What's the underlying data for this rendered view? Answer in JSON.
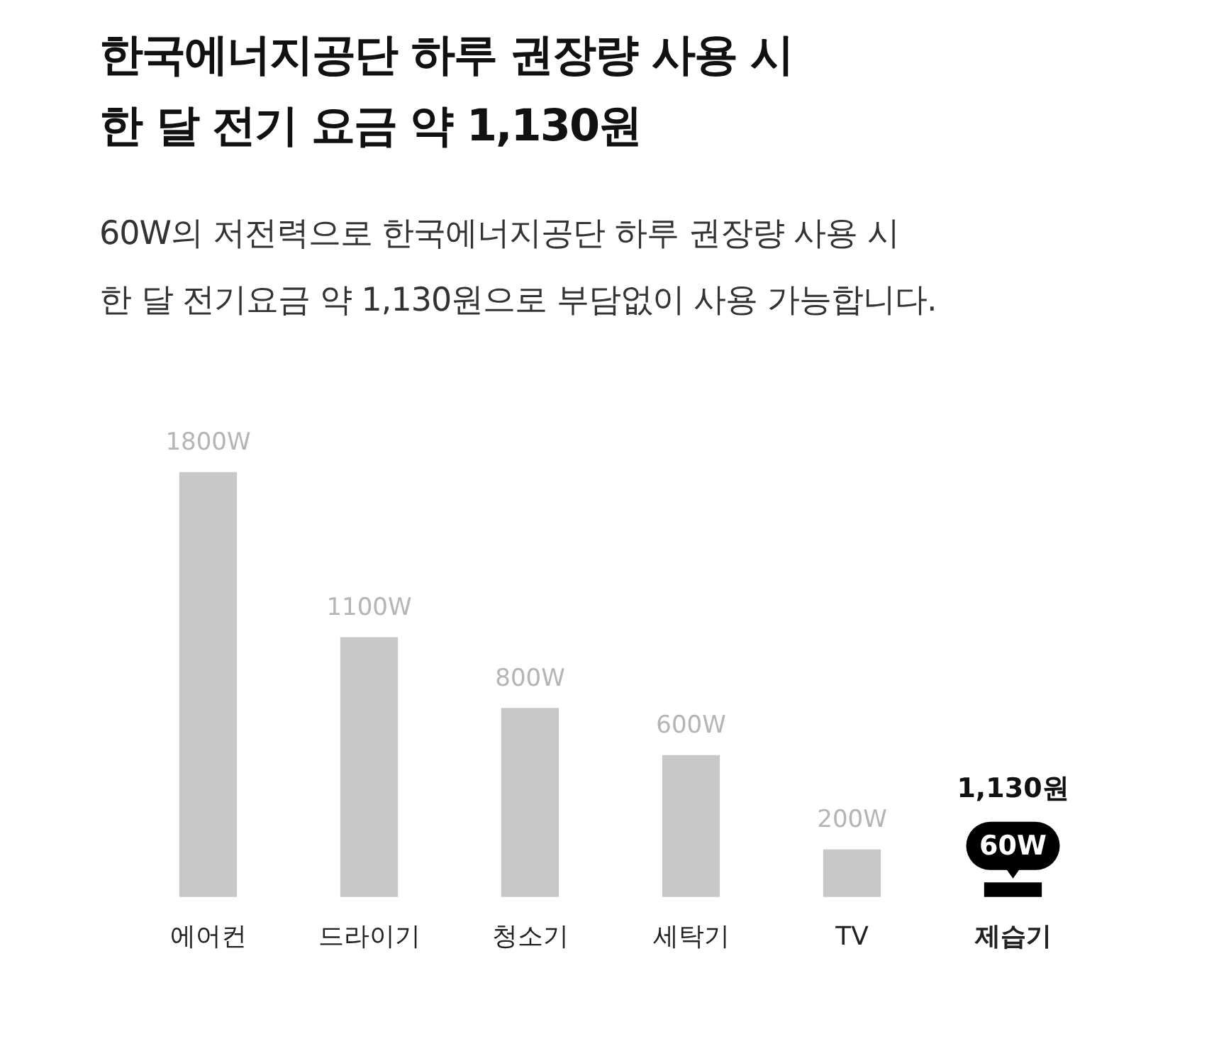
{
  "chart_data": {
    "type": "bar",
    "title": "한국에너지공단 하루 권장량 사용 시\n한 달 전기 요금 약 1,130원",
    "subtitle": "60W의 저전력으로 한국에너지공단 하루 권장량 사용 시\n한 달 전기요금 약 1,130원으로 부담없이 사용 가능합니다.",
    "categories": [
      "에어컨",
      "드라이기",
      "청소기",
      "세탁기",
      "TV",
      "제습기"
    ],
    "values": [
      1800,
      1100,
      800,
      600,
      200,
      60
    ],
    "colors": [
      "#c8c8c8",
      "#c8c8c8",
      "#c8c8c8",
      "#c8c8c8",
      "#c8c8c8",
      "#000000"
    ],
    "value_labels": [
      "1800W",
      "1100W",
      "800W",
      "600W",
      "200W",
      "60W"
    ],
    "annotations": [
      "1,130원"
    ],
    "grid": false,
    "legend": false
  }
}
